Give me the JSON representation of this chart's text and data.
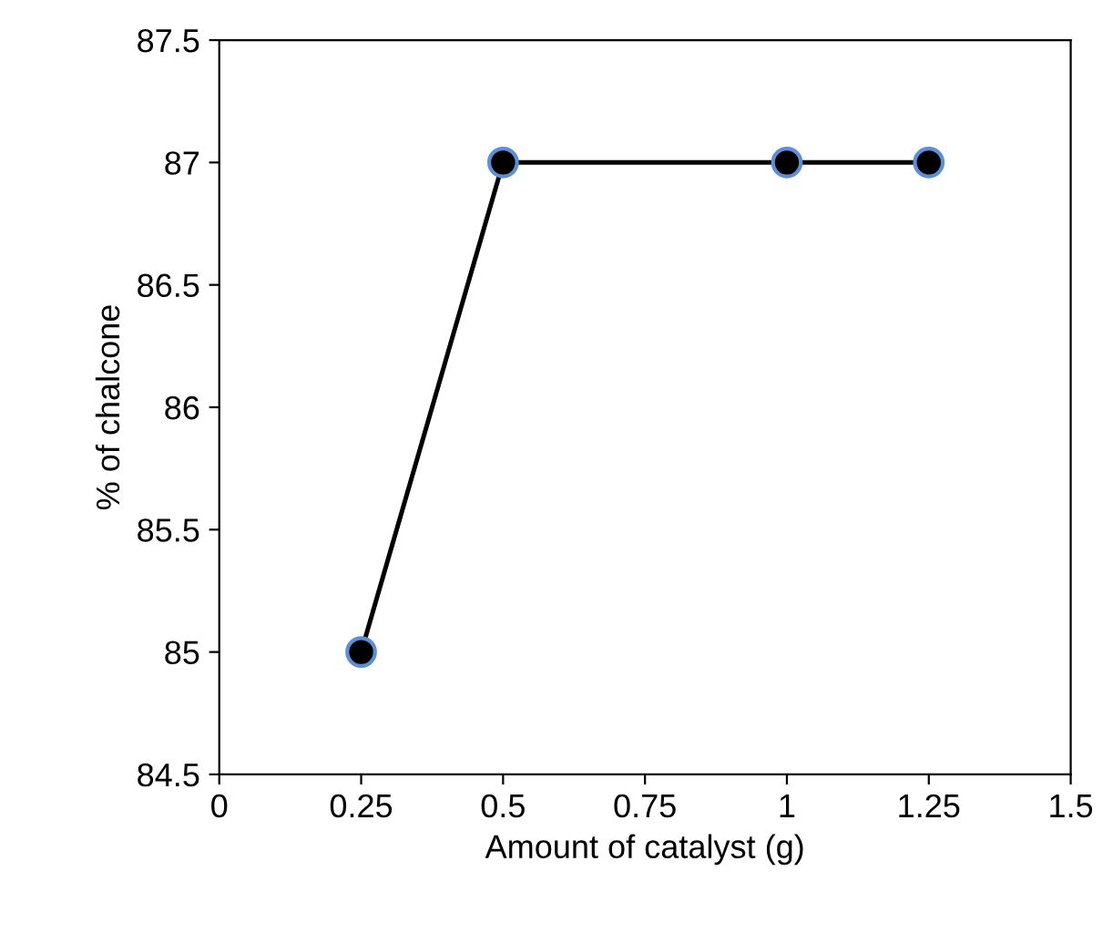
{
  "chart_data": {
    "type": "line",
    "xlabel": "Amount of catalyst (g)",
    "ylabel": "% of chalcone",
    "x": [
      0.25,
      0.5,
      1,
      1.25
    ],
    "series": [
      {
        "color": "#000000",
        "values": [
          85,
          87,
          87,
          87
        ]
      }
    ],
    "xlim": [
      0,
      1.5
    ],
    "xticks": [
      0,
      0.25,
      0.5,
      0.75,
      1,
      1.25,
      1.5
    ],
    "ylim": [
      84.5,
      87.5
    ],
    "yticks": [
      84.5,
      85,
      85.5,
      86,
      86.5,
      87,
      87.5
    ],
    "marker": "circle",
    "line_style": "solid",
    "grid": false,
    "legend": false
  }
}
